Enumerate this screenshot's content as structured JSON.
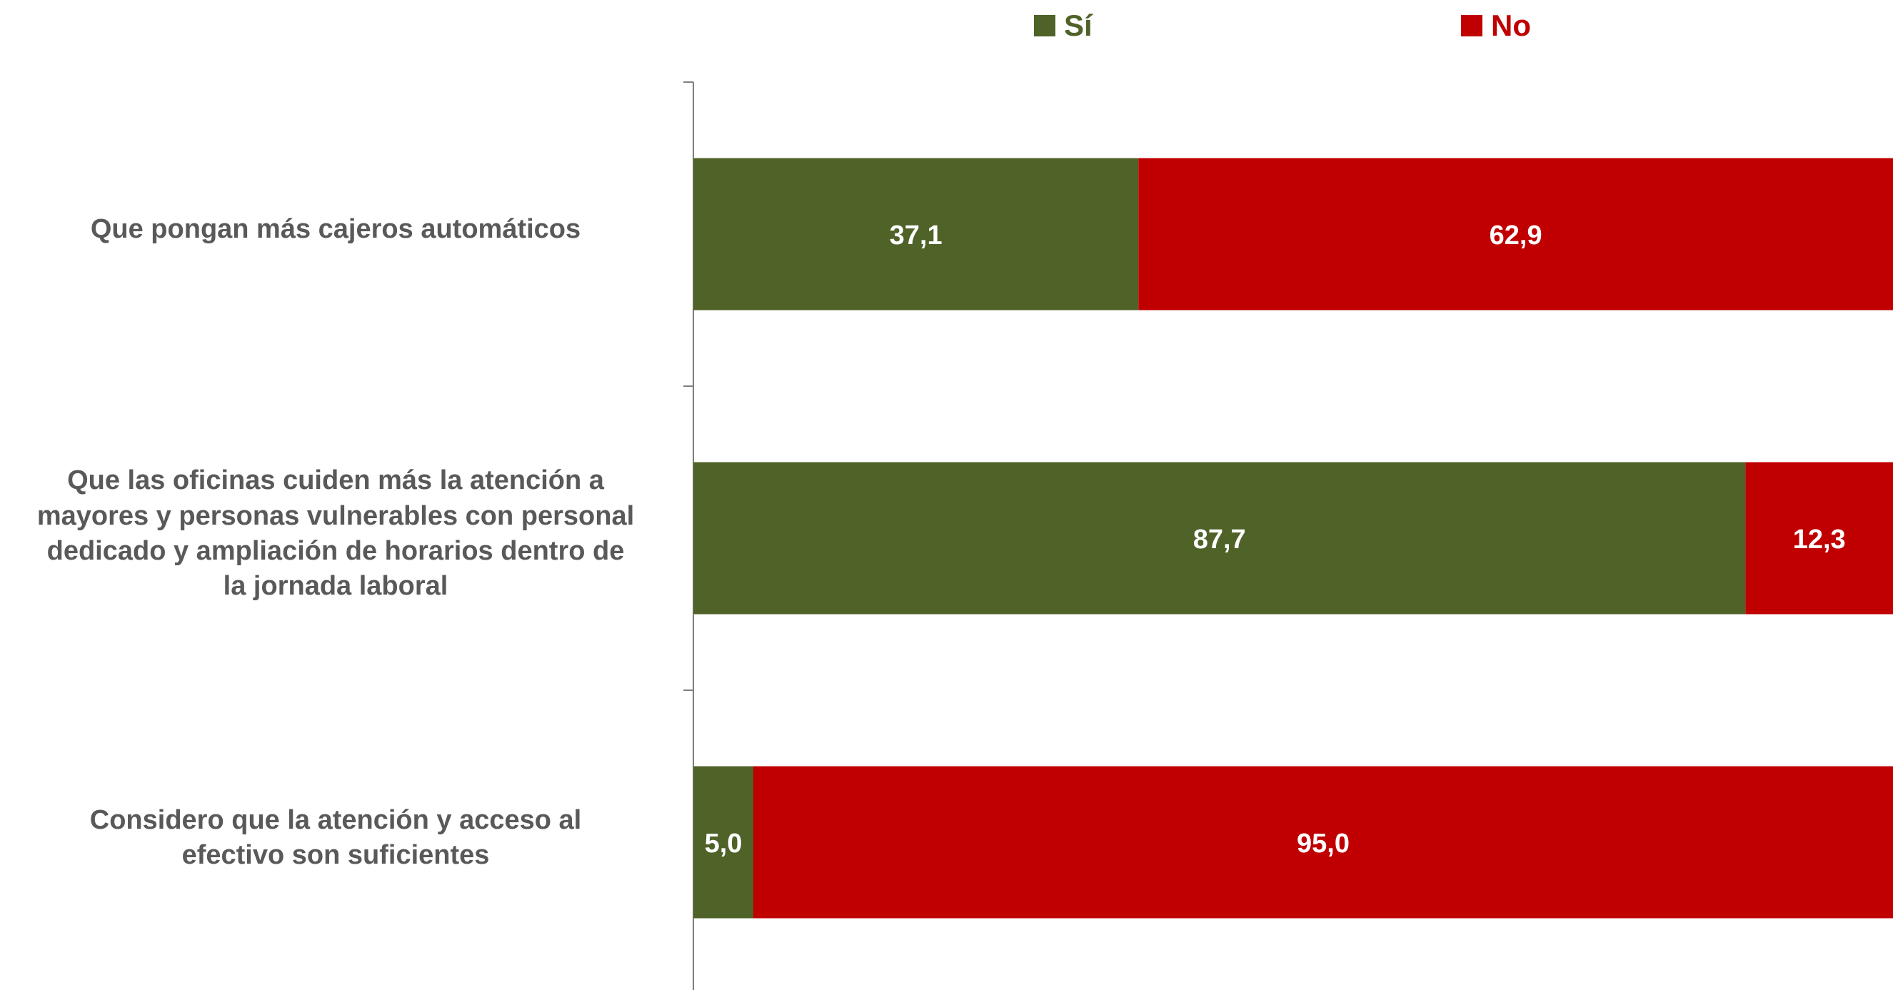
{
  "chart_data": {
    "type": "bar",
    "orientation": "horizontal",
    "stacked": true,
    "categories": [
      "Que pongan más cajeros automáticos",
      "Que las oficinas cuiden más la atención a mayores y personas vulnerables con personal dedicado y ampliación de horarios dentro de la jornada laboral",
      "Considero que la atención y acceso al efectivo son suficientes"
    ],
    "category_lines": [
      [
        "Que pongan más cajeros automáticos"
      ],
      [
        "Que las oficinas cuiden más la atención a",
        "mayores y personas vulnerables con personal",
        "dedicado y ampliación de horarios dentro de",
        "la jornada laboral"
      ],
      [
        "Considero que la atención y acceso al",
        "efectivo son suficientes"
      ]
    ],
    "series": [
      {
        "name": "Sí",
        "color": "#4F6228",
        "values": [
          37.1,
          87.7,
          5.0
        ],
        "labels": [
          "37,1",
          "87,7",
          "5,0"
        ]
      },
      {
        "name": "No",
        "color": "#C00000",
        "values": [
          62.9,
          12.3,
          95.0
        ],
        "labels": [
          "62,9",
          "12,3",
          "95,0"
        ]
      }
    ],
    "xlim": [
      0,
      100
    ],
    "grid": false,
    "legend_position": "top"
  }
}
